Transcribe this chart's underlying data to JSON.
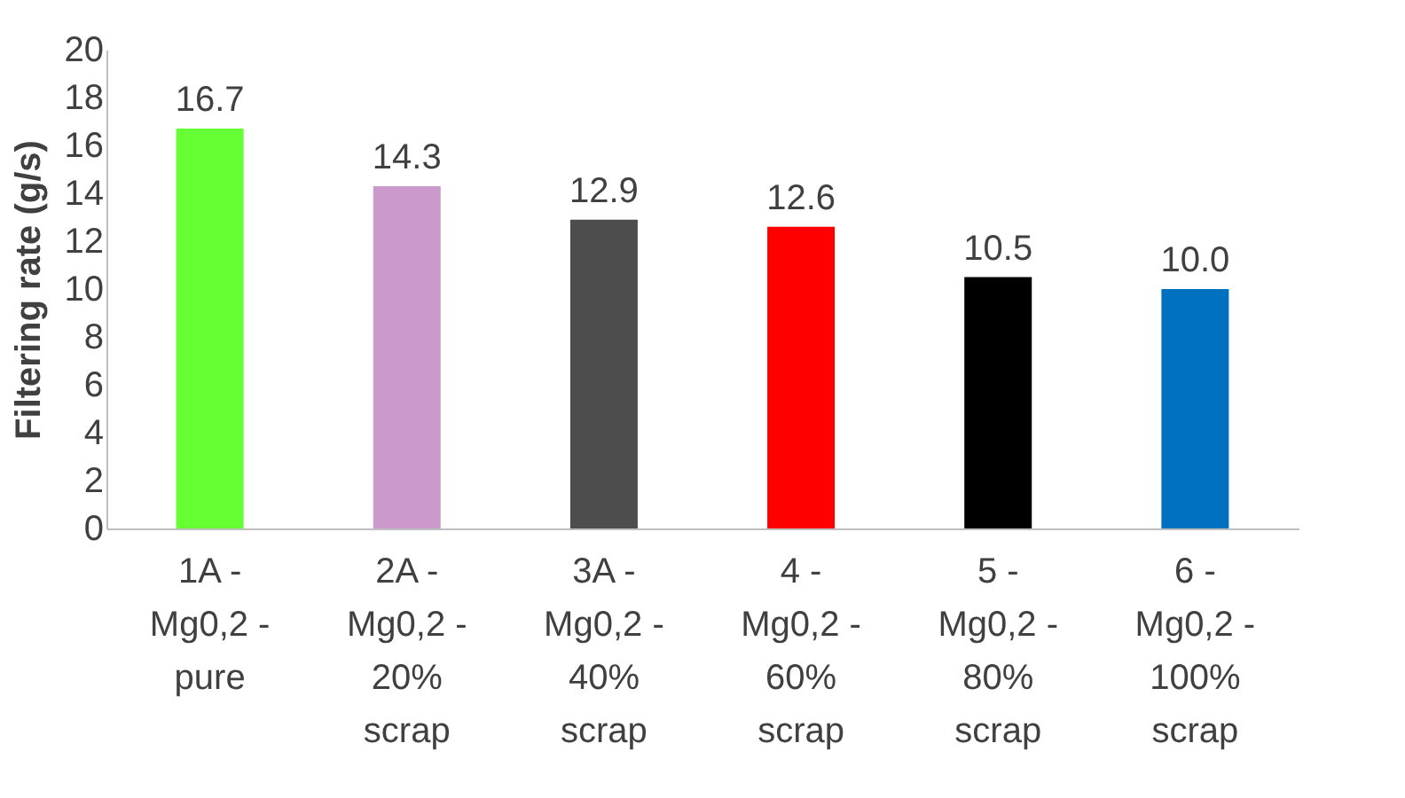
{
  "chart_data": {
    "type": "bar",
    "ylabel": "Filtering rate (g/s)",
    "categories": [
      "1A - Mg0,2 - pure",
      "2A - Mg0,2 - 20% scrap",
      "3A - Mg0,2 - 40% scrap",
      "4 - Mg0,2 - 60% scrap",
      "5 - Mg0,2 - 80% scrap",
      "6 - Mg0,2 - 100% scrap"
    ],
    "values": [
      16.7,
      14.3,
      12.9,
      12.6,
      10.5,
      10.0
    ],
    "value_labels": [
      "16.7",
      "14.3",
      "12.9",
      "12.6",
      "10.5",
      "10.0"
    ],
    "colors": [
      "#66ff33",
      "#cc99cc",
      "#4d4d4d",
      "#ff0000",
      "#000000",
      "#0070c0"
    ],
    "ylim": [
      0,
      20
    ],
    "yticks": [
      0,
      2,
      4,
      6,
      8,
      10,
      12,
      14,
      16,
      18,
      20
    ],
    "grid": false
  }
}
